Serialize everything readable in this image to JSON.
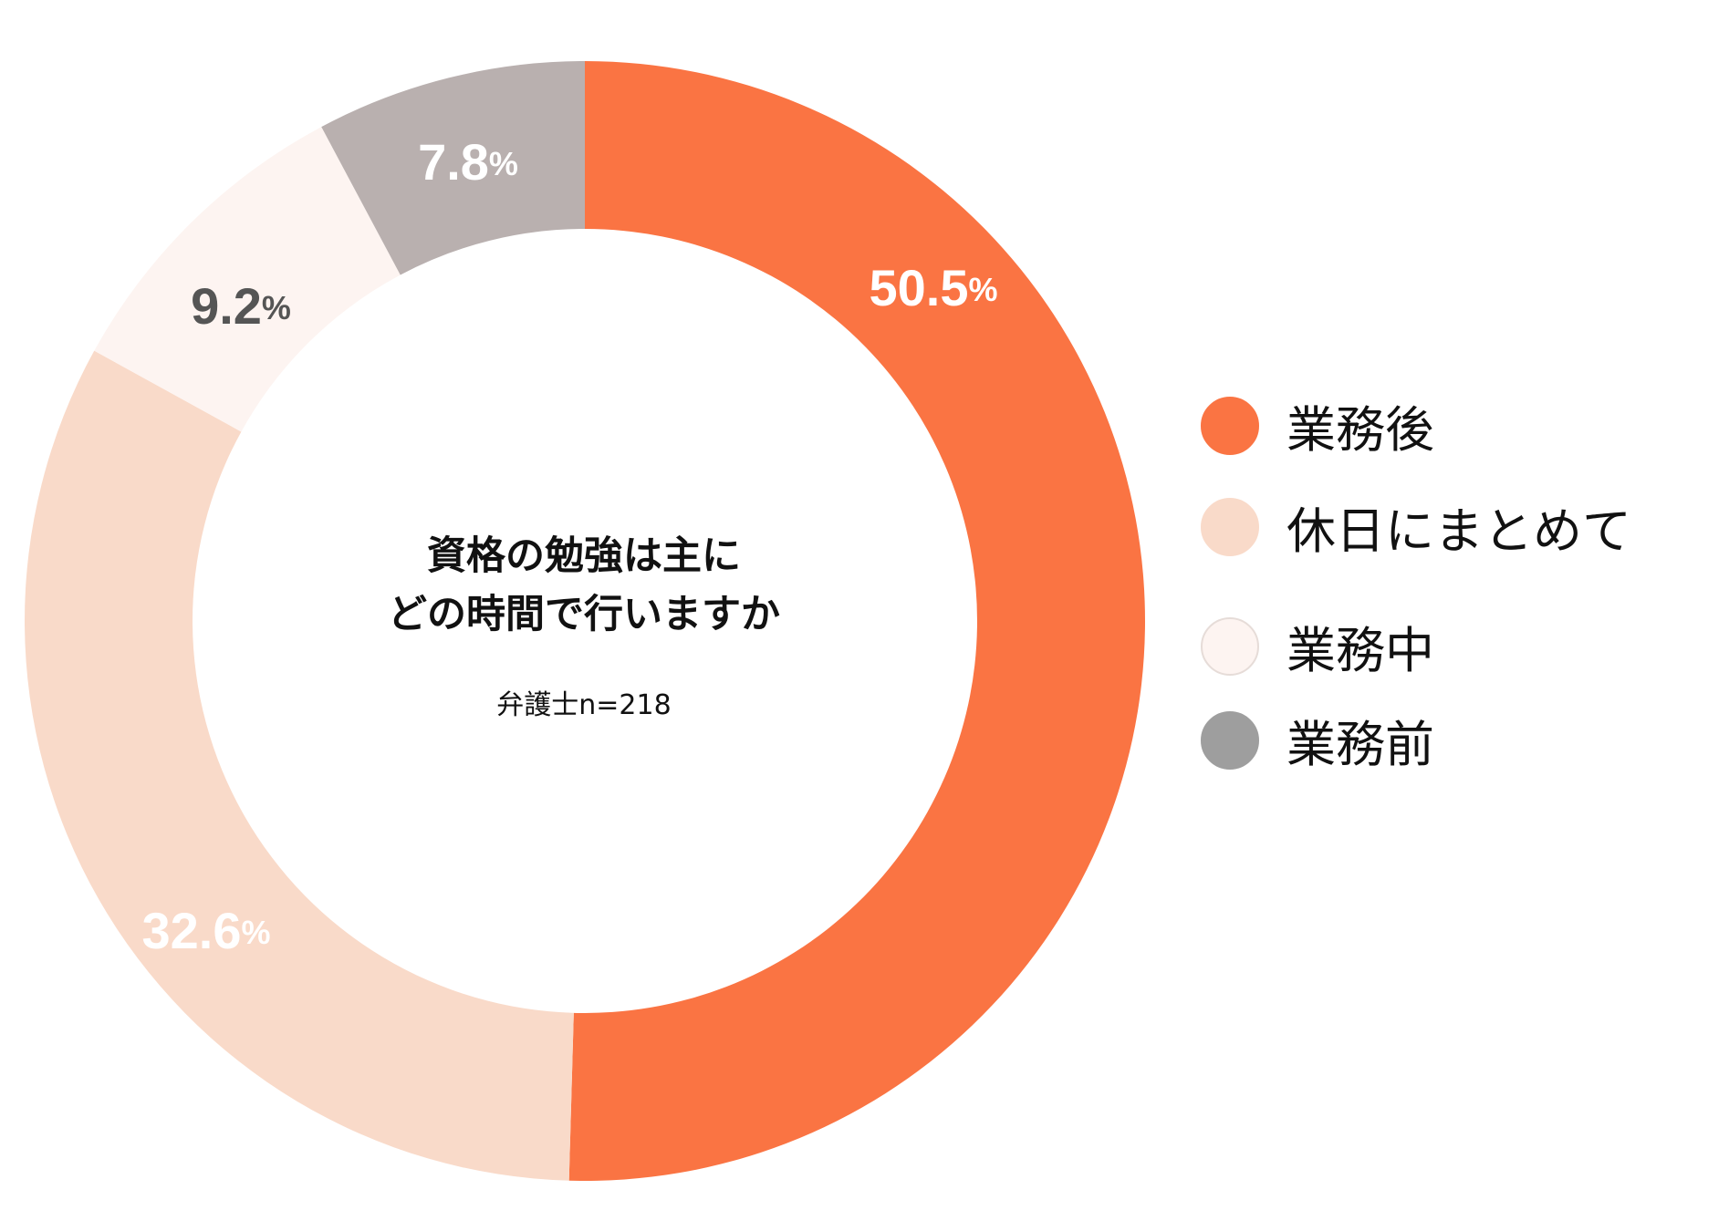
{
  "chart_data": {
    "type": "pie",
    "donut": true,
    "title": "資格の勉強は主に",
    "title_line2": "どの時間で行いますか",
    "subtitle": "弁護士n=218",
    "unit": "%",
    "slices": [
      {
        "name": "業務後",
        "value": 50.5,
        "value_label": "50.5",
        "color": "#fa7443",
        "label_color": "#ffffff"
      },
      {
        "name": "休日にまとめて",
        "value": 32.6,
        "value_label": "32.6",
        "color": "#f9dac9",
        "label_color": "#ffffff"
      },
      {
        "name": "業務中",
        "value": 9.2,
        "value_label": "9.2",
        "color": "#fdf4f1",
        "label_color": "#555555"
      },
      {
        "name": "業務前",
        "value": 7.8,
        "value_label": "7.8",
        "color": "#b9b0af",
        "label_color": "#ffffff"
      }
    ],
    "start_angle": "12 o'clock",
    "direction": "clockwise",
    "legend_position": "right"
  },
  "legend": [
    {
      "label": "業務後",
      "color": "#fa7443",
      "border": "#fa7443"
    },
    {
      "label": "休日にまとめて",
      "color": "#f9dac9",
      "border": "#f9dac9"
    },
    {
      "label": "業務中",
      "color": "#fdf4f1",
      "border": "#e6dcd8"
    },
    {
      "label": "業務前",
      "color": "#9e9e9e",
      "border": "#9e9e9e"
    }
  ]
}
